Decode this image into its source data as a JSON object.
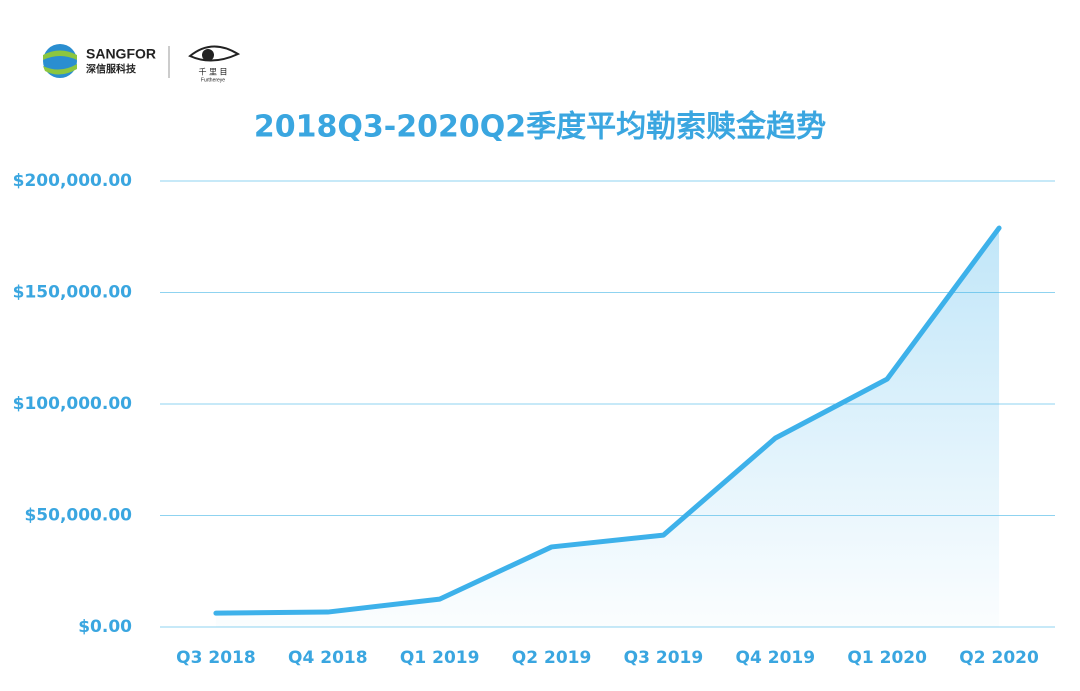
{
  "brand": {
    "name": "SANGFOR",
    "subname": "深信服科技",
    "product": "千 里 目",
    "product_en": "Furthereye"
  },
  "chart_data": {
    "type": "area",
    "title": "2018Q3-2020Q2季度平均勒索赎金趋势",
    "categories": [
      "Q3 2018",
      "Q4 2018",
      "Q1 2019",
      "Q2 2019",
      "Q3 2019",
      "Q4 2019",
      "Q1 2020",
      "Q2 2020"
    ],
    "values": [
      6200,
      6700,
      12500,
      35900,
      41200,
      84700,
      111200,
      178900
    ],
    "color": "#3db1ea",
    "ylim": [
      0,
      200000
    ],
    "yticks": [
      {
        "value": 0,
        "label": "$0.00"
      },
      {
        "value": 50000,
        "label": "$50,000.00"
      },
      {
        "value": 100000,
        "label": "$100,000.00"
      },
      {
        "value": 150000,
        "label": "$150,000.00"
      },
      {
        "value": 200000,
        "label": "$200,000.00"
      }
    ],
    "grid": true
  }
}
